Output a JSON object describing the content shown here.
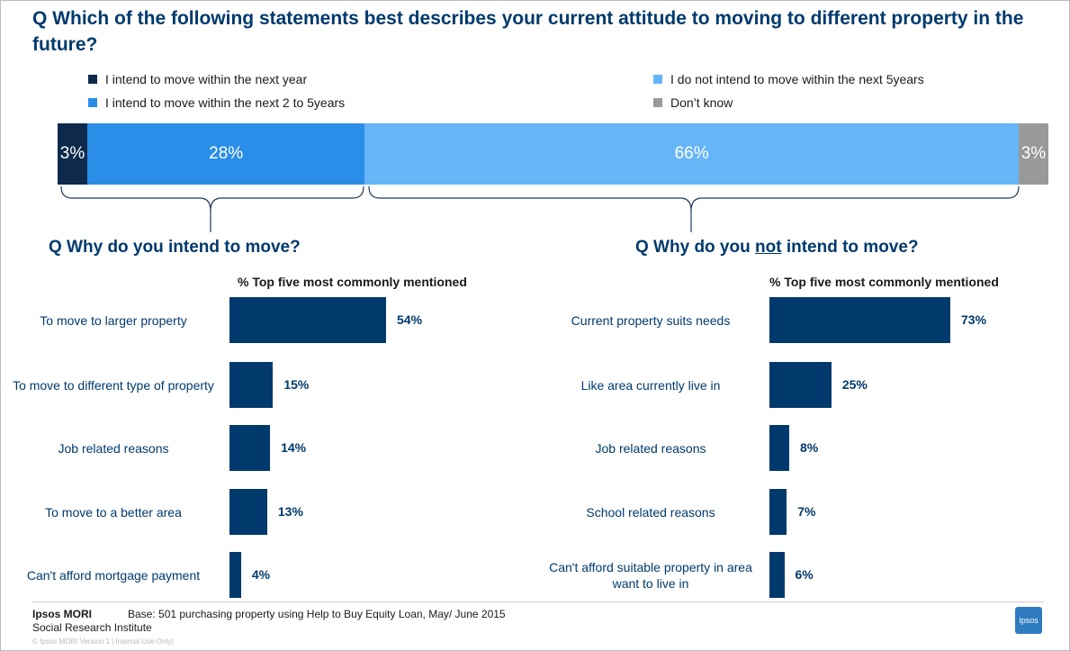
{
  "title": "Q  Which of the following statements best describes your current attitude to moving to different property in the future?",
  "legend": [
    {
      "label": "I intend to move within the next year",
      "color": "#0d2a4c"
    },
    {
      "label": "I intend to move within the next 2 to 5years",
      "color": "#2a8ee8"
    },
    {
      "label": "I do not intend to move within the next 5years",
      "color": "#66b5f7"
    },
    {
      "label": "Don’t know",
      "color": "#999999"
    }
  ],
  "left_question": {
    "prefix": "Q  Why do you ",
    "rest": "intend to move?"
  },
  "right_question": {
    "prefix": "Q  Why do you ",
    "underlined": "not",
    "rest": " intend to move?"
  },
  "column_header": "% Top five most commonly mentioned",
  "footer": {
    "brand": "Ipsos MORI",
    "brand_sub": "Social Research Institute",
    "base": "Base: 501 purchasing property using Help to Buy Equity Loan, May/ June  2015",
    "copyright": "© Ipsos MORI    Version 1 | Internal Use Only)",
    "logo_text": "Ipsos"
  },
  "chart_data": [
    {
      "type": "bar",
      "stacked": true,
      "orientation": "horizontal",
      "categories": [
        "I intend to move within the next year",
        "I intend to move within the next 2 to 5years",
        "I do not intend to move within the next 5years",
        "Don’t know"
      ],
      "values": [
        3,
        28,
        66,
        3
      ],
      "labels": [
        "3%",
        "28%",
        "66%",
        "3%"
      ],
      "colors": [
        "#0d2a4c",
        "#2a8ee8",
        "#66b5f7",
        "#999999"
      ]
    },
    {
      "type": "bar",
      "orientation": "horizontal",
      "title": "Q  Why do you intend to move?",
      "categories": [
        "To move to larger property",
        "To move to different type of property",
        "Job related reasons",
        "To move to a better area",
        "Can't afford mortgage payment"
      ],
      "values": [
        54,
        15,
        14,
        13,
        4
      ],
      "labels": [
        "54%",
        "15%",
        "14%",
        "13%",
        "4%"
      ]
    },
    {
      "type": "bar",
      "orientation": "horizontal",
      "title": "Q  Why do you not intend to move?",
      "categories": [
        "Current property suits needs",
        "Like area currently live in",
        "Job related reasons",
        "School related reasons",
        "Can't afford suitable property in area want to live in"
      ],
      "values": [
        73,
        25,
        8,
        7,
        6
      ],
      "labels": [
        "73%",
        "25%",
        "8%",
        "7%",
        "6%"
      ]
    }
  ]
}
